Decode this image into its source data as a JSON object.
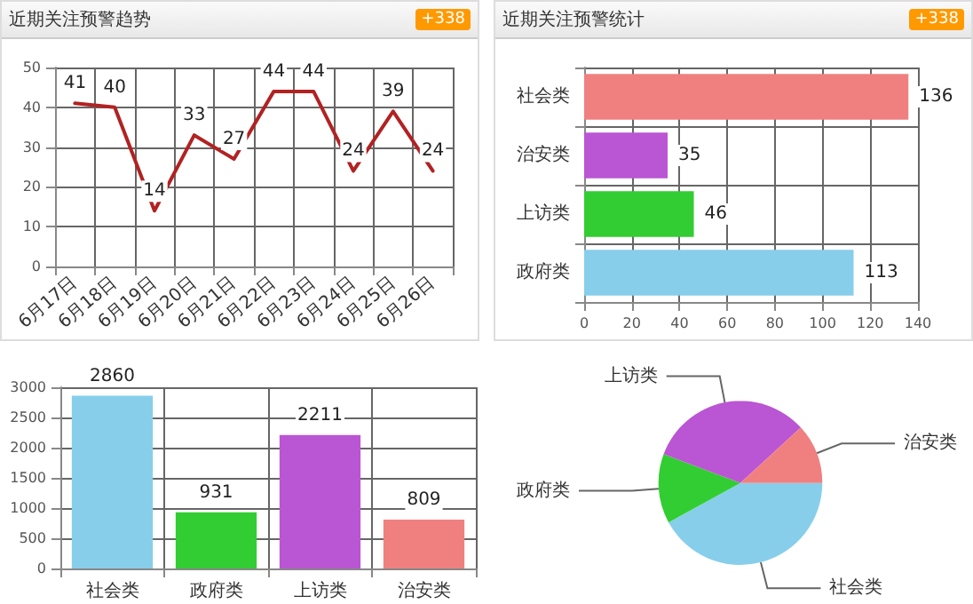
{
  "chart_data": [
    {
      "type": "line",
      "title": "近期关注预警趋势",
      "annotations": [
        "+338"
      ],
      "categories": [
        "6月17日",
        "6月18日",
        "6月19日",
        "6月20日",
        "6月21日",
        "6月22日",
        "6月23日",
        "6月24日",
        "6月25日",
        "6月26日"
      ],
      "series": [
        {
          "color": "#b22222",
          "values": [
            41,
            40,
            14,
            33,
            27,
            44,
            44,
            24,
            39,
            24
          ]
        }
      ],
      "ylim": [
        0,
        50
      ],
      "yticks": [
        0,
        10,
        20,
        30,
        40,
        50
      ],
      "grid": true,
      "data_labels": true,
      "marker": "none",
      "line_style": "solid"
    },
    {
      "type": "bar",
      "orientation": "horizontal",
      "title": "近期关注预警统计",
      "annotations": [
        "+338"
      ],
      "categories": [
        "社会类",
        "治安类",
        "上访类",
        "政府类"
      ],
      "values": [
        136,
        35,
        46,
        113
      ],
      "colors": [
        "#f08080",
        "#ba55d3",
        "#32cd32",
        "#87ceeb"
      ],
      "xlim": [
        0,
        140
      ],
      "xticks": [
        0,
        20,
        40,
        60,
        80,
        100,
        120,
        140
      ],
      "grid": true,
      "data_labels": true
    },
    {
      "type": "bar",
      "categories": [
        "社会类",
        "政府类",
        "上访类",
        "治安类"
      ],
      "values": [
        2860,
        931,
        2211,
        809
      ],
      "colors": [
        "#87ceeb",
        "#32cd32",
        "#ba55d3",
        "#f08080"
      ],
      "ylim": [
        0,
        3000
      ],
      "yticks": [
        0,
        500,
        1000,
        1500,
        2000,
        2500,
        3000
      ],
      "grid": true,
      "data_labels": true
    },
    {
      "type": "pie",
      "categories": [
        "社会类",
        "政府类",
        "上访类",
        "治安类"
      ],
      "values": [
        42,
        13.7,
        32.5,
        11.8
      ],
      "colors": [
        "#87ceeb",
        "#32cd32",
        "#ba55d3",
        "#f08080"
      ]
    }
  ]
}
